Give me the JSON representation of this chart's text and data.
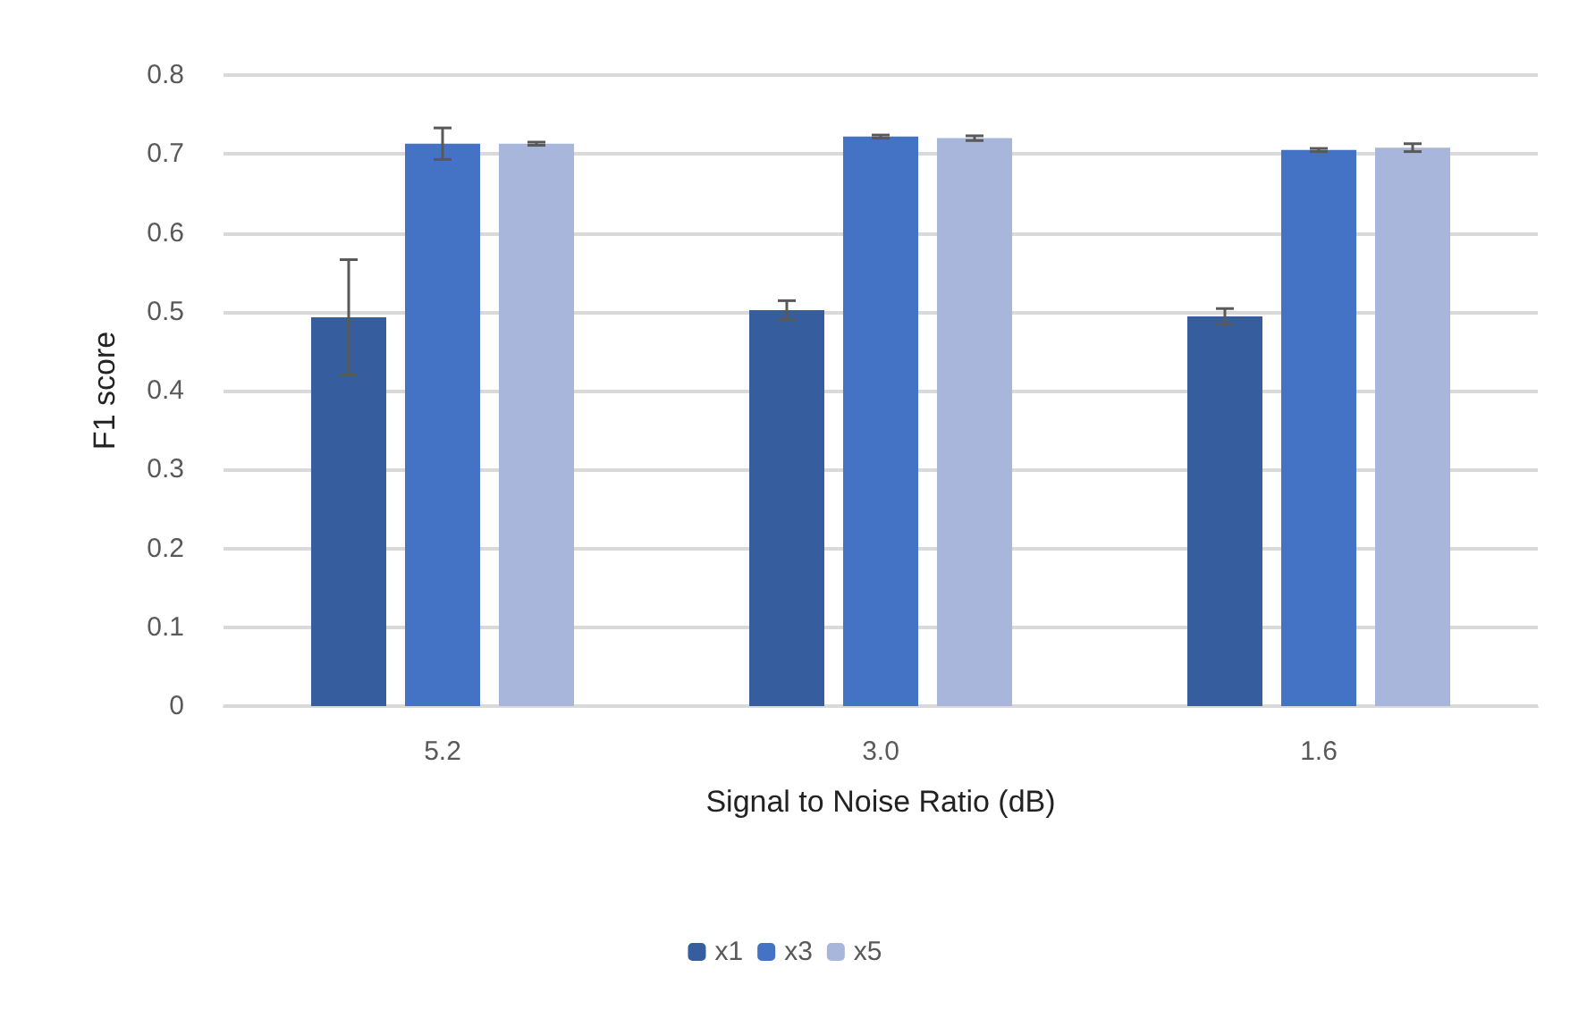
{
  "chart_data": {
    "type": "bar",
    "xlabel": "Signal to Noise Ratio (dB)",
    "ylabel": "F1 score",
    "categories": [
      "5.2",
      "3.0",
      "1.6"
    ],
    "series": [
      {
        "name": "x1",
        "color": "#365e9f",
        "values": [
          0.493,
          0.502,
          0.494
        ],
        "errors": [
          0.073,
          0.012,
          0.01
        ]
      },
      {
        "name": "x3",
        "color": "#4472c4",
        "values": [
          0.713,
          0.722,
          0.705
        ],
        "errors": [
          0.02,
          0.002,
          0.002
        ]
      },
      {
        "name": "x5",
        "color": "#a8b6db",
        "values": [
          0.713,
          0.72,
          0.708
        ],
        "errors": [
          0.002,
          0.003,
          0.005
        ]
      }
    ],
    "ylim": [
      0,
      0.8
    ],
    "yticks": [
      0,
      0.1,
      0.2,
      0.3,
      0.4,
      0.5,
      0.6,
      0.7,
      0.8
    ],
    "grid": "y",
    "legend": "bottom"
  }
}
